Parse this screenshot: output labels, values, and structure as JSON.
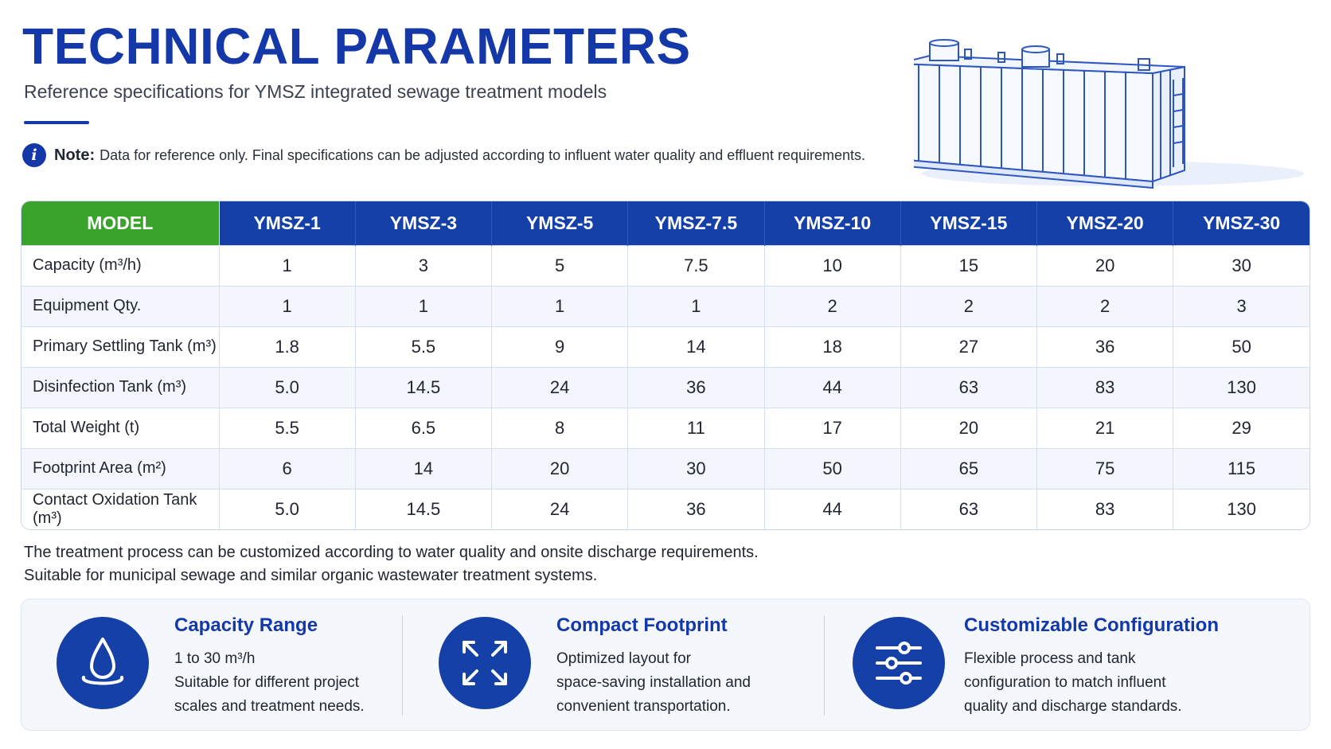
{
  "header": {
    "title": "TECHNICAL PARAMETERS",
    "subtitle": "Reference specifications for YMSZ integrated sewage treatment models"
  },
  "note": {
    "label": "Note:",
    "text": "Data for reference only. Final specifications can be adjusted according to influent water quality and effluent requirements."
  },
  "table": {
    "corner_label": "MODEL",
    "models": [
      "YMSZ-1",
      "YMSZ-3",
      "YMSZ-5",
      "YMSZ-7.5",
      "YMSZ-10",
      "YMSZ-15",
      "YMSZ-20",
      "YMSZ-30"
    ],
    "rows": [
      {
        "label": "Capacity (m³/h)",
        "values": [
          "1",
          "3",
          "5",
          "7.5",
          "10",
          "15",
          "20",
          "30"
        ]
      },
      {
        "label": "Equipment Qty.",
        "values": [
          "1",
          "1",
          "1",
          "1",
          "2",
          "2",
          "2",
          "3"
        ]
      },
      {
        "label": "Primary Settling Tank (m³)",
        "values": [
          "1.8",
          "5.5",
          "9",
          "14",
          "18",
          "27",
          "36",
          "50"
        ]
      },
      {
        "label": "Disinfection Tank (m³)",
        "values": [
          "5.0",
          "14.5",
          "24",
          "36",
          "44",
          "63",
          "83",
          "130"
        ]
      },
      {
        "label": "Total Weight (t)",
        "values": [
          "5.5",
          "6.5",
          "8",
          "11",
          "17",
          "20",
          "21",
          "29"
        ]
      },
      {
        "label": "Footprint Area (m²)",
        "values": [
          "6",
          "14",
          "20",
          "30",
          "50",
          "65",
          "75",
          "115"
        ]
      },
      {
        "label": "Contact Oxidation Tank (m³)",
        "values": [
          "5.0",
          "14.5",
          "24",
          "36",
          "44",
          "63",
          "83",
          "130"
        ]
      }
    ]
  },
  "footnote": {
    "line1": "The treatment process can be customized according to water quality and onsite discharge requirements.",
    "line2": "Suitable for municipal sewage and similar organic wastewater treatment systems."
  },
  "features": [
    {
      "icon": "water-drop-icon",
      "title": "Capacity Range",
      "lines": [
        "1 to 30 m³/h",
        "Suitable for different project",
        "scales and treatment needs."
      ]
    },
    {
      "icon": "expand-arrows-icon",
      "title": "Compact Footprint",
      "lines": [
        "Optimized layout for",
        "space-saving installation and",
        "convenient transportation."
      ]
    },
    {
      "icon": "sliders-icon",
      "title": "Customizable Configuration",
      "lines": [
        "Flexible process and tank",
        "configuration to match influent",
        "quality and discharge standards."
      ]
    }
  ],
  "colors": {
    "primary_blue": "#1440a8",
    "model_green": "#3aa32c",
    "row_stripe": "#f3f7fd"
  }
}
